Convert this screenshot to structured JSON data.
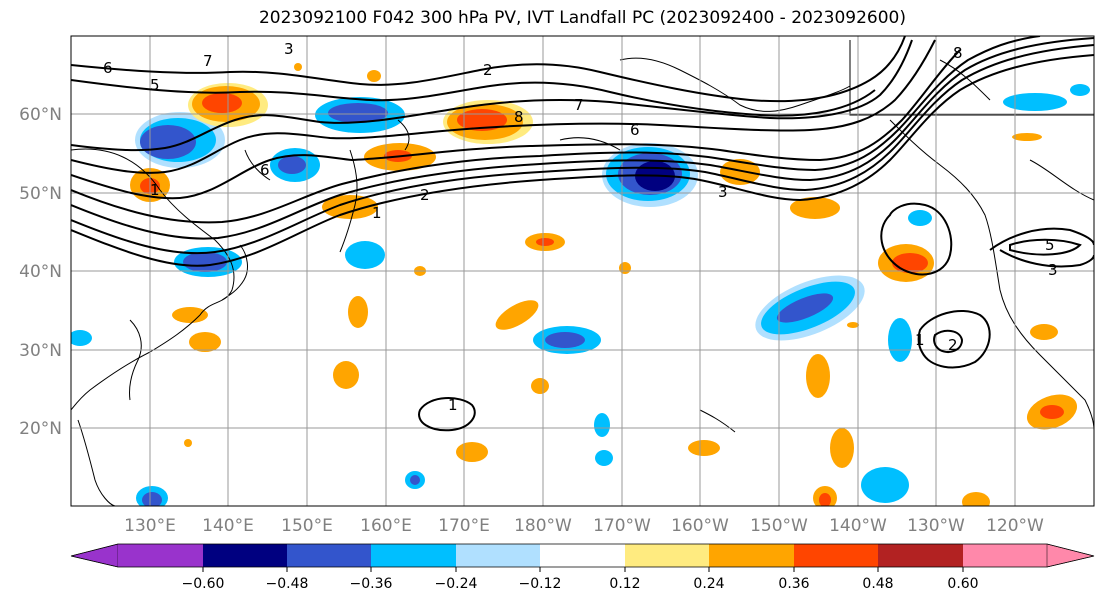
{
  "title": "2023092100 F042 300 hPa PV, IVT Landfall PC (2023092400 - 2023092600)",
  "lat_labels": [
    "60°N",
    "50°N",
    "40°N",
    "30°N",
    "20°N"
  ],
  "lon_labels": [
    "130°E",
    "140°E",
    "150°E",
    "160°E",
    "170°E",
    "180°W",
    "170°W",
    "160°W",
    "150°W",
    "140°W",
    "130°W",
    "120°W"
  ],
  "colorbar": {
    "ticks": [
      "−0.60",
      "−0.48",
      "−0.36",
      "−0.24",
      "−0.12",
      "0.12",
      "0.24",
      "0.36",
      "0.48",
      "0.60"
    ],
    "colors": [
      "#9933cc",
      "#000080",
      "#3355cc",
      "#00bfff",
      "#b0e0ff",
      "#ffffff",
      "#ffeb80",
      "#ffa500",
      "#ff4500",
      "#b22222",
      "#ff88aa"
    ]
  },
  "contour_labels": [
    "3",
    "5",
    "7",
    "2",
    "8",
    "6",
    "1",
    "6",
    "1",
    "2",
    "7",
    "3",
    "1",
    "2",
    "1",
    "5",
    "3",
    "8",
    "6"
  ]
}
